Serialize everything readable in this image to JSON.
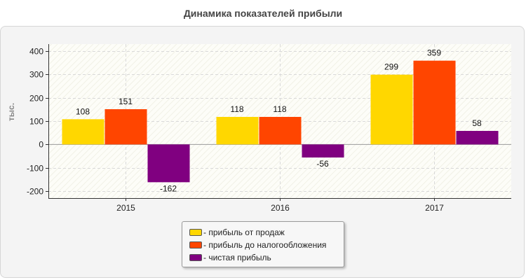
{
  "chart_data": {
    "type": "bar",
    "title": "Динамика показателей прибыли",
    "xlabel": "",
    "ylabel": "тыс.",
    "categories": [
      "2015",
      "2016",
      "2017"
    ],
    "series": [
      {
        "name": "прибыль от продаж",
        "color": "#FFD700",
        "values": [
          108,
          118,
          299
        ]
      },
      {
        "name": "прибыль до налогообложения",
        "color": "#FF4500",
        "values": [
          151,
          118,
          359
        ]
      },
      {
        "name": "чистая прибыль",
        "color": "#800080",
        "values": [
          -162,
          -56,
          58
        ]
      }
    ],
    "ylim": [
      -230,
      430
    ],
    "yticks": [
      -200,
      -100,
      0,
      100,
      200,
      300,
      400
    ],
    "grid": true,
    "legend": "bottom-center"
  }
}
